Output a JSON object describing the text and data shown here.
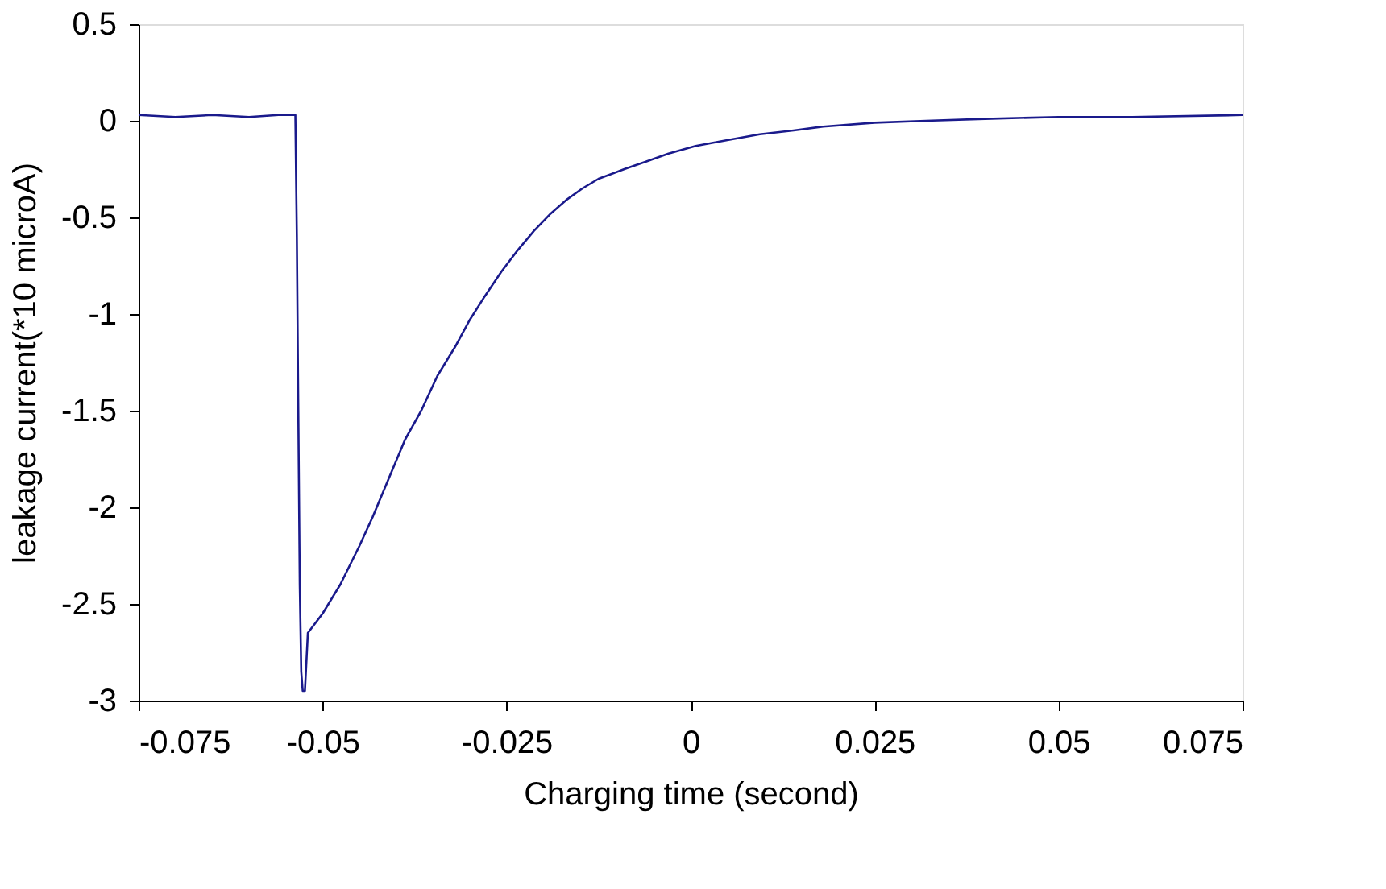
{
  "chart_data": {
    "type": "line",
    "xlabel": "Charging time (second)",
    "ylabel": "leakage current(*10 microA)",
    "xlim": [
      -0.075,
      0.075
    ],
    "xticks": [
      -0.075,
      -0.05,
      -0.025,
      0,
      0.025,
      0.05,
      0.075
    ],
    "ylim": [
      -3,
      0.5
    ],
    "yticks": [
      -3,
      -2.5,
      -2,
      -1.5,
      -1,
      -0.5,
      0,
      0.5
    ],
    "grid": false,
    "marker": "none",
    "line_style": "solid",
    "series": [
      {
        "color": "#1a1a8c",
        "x": [
          -0.075,
          -0.07,
          -0.065,
          -0.06,
          -0.056,
          -0.0537,
          -0.0535,
          -0.0533,
          -0.0531,
          -0.0529,
          -0.0527,
          -0.0524,
          -0.052,
          -0.05,
          -0.0476,
          -0.045,
          -0.0432,
          -0.041,
          -0.0388,
          -0.0366,
          -0.0344,
          -0.032,
          -0.03,
          -0.028,
          -0.0257,
          -0.0235,
          -0.0213,
          -0.019,
          -0.0169,
          -0.0147,
          -0.0125,
          -0.009,
          -0.006,
          -0.003,
          0.0007,
          0.005,
          0.0094,
          0.014,
          0.018,
          0.025,
          0.032,
          0.04,
          0.05,
          0.06,
          0.075
        ],
        "values": [
          0.03,
          0.02,
          0.03,
          0.02,
          0.03,
          0.03,
          -0.6,
          -1.5,
          -2.4,
          -2.85,
          -2.95,
          -2.95,
          -2.65,
          -2.55,
          -2.4,
          -2.2,
          -2.05,
          -1.85,
          -1.65,
          -1.5,
          -1.32,
          -1.17,
          -1.03,
          -0.91,
          -0.78,
          -0.67,
          -0.57,
          -0.48,
          -0.41,
          -0.35,
          -0.3,
          -0.25,
          -0.21,
          -0.17,
          -0.13,
          -0.1,
          -0.07,
          -0.05,
          -0.03,
          -0.01,
          0.0,
          0.01,
          0.02,
          0.02,
          0.03
        ]
      }
    ]
  }
}
